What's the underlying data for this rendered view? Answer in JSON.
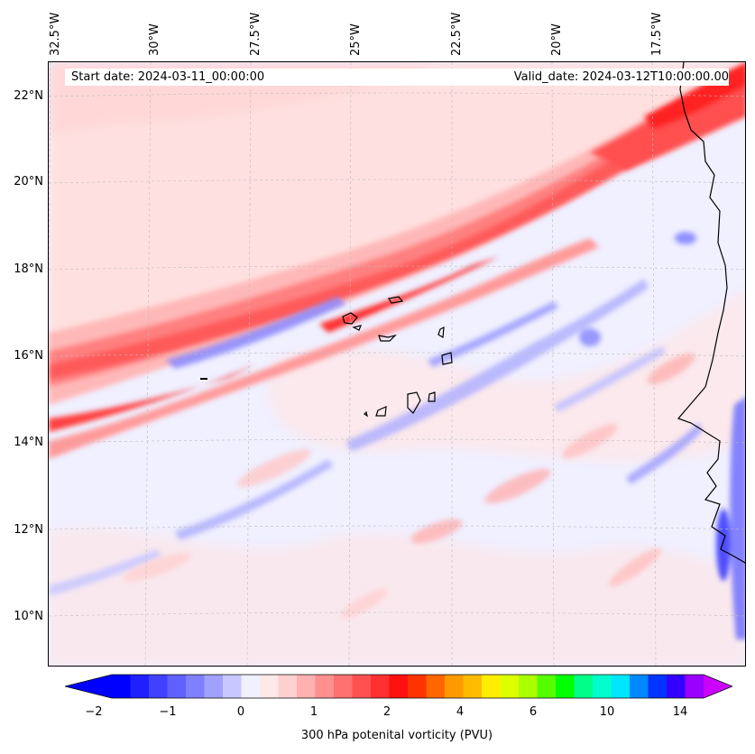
{
  "map": {
    "start_date": "Start date: 2024-03-11_00:00:00",
    "valid_date": "Valid_date: 2024-03-12T10:00:00.00",
    "lon_labels": [
      "32.5°W",
      "30°W",
      "27.5°W",
      "25°W",
      "22.5°W",
      "20°W",
      "17.5°W"
    ],
    "lat_labels": [
      "22°N",
      "20°N",
      "18°N",
      "16°N",
      "14°N",
      "12°N",
      "10°N"
    ],
    "gridlines": true,
    "coastline_color": "#000000"
  },
  "colorbar": {
    "label": "300 hPa potenital vorticity (PVU)",
    "ticks": [
      "−2",
      "−1",
      "0",
      "1",
      "2",
      "4",
      "6",
      "10",
      "14"
    ],
    "extend": "both",
    "colors": [
      "#0000ff",
      "#2020ff",
      "#4040ff",
      "#6060ff",
      "#8080ff",
      "#a0a0ff",
      "#c8c8ff",
      "#f0f0ff",
      "#ffe8e8",
      "#ffd0d0",
      "#ffb0b0",
      "#ff9090",
      "#ff7070",
      "#ff5050",
      "#ff3030",
      "#ff1010",
      "#ff3300",
      "#ff6600",
      "#ff9900",
      "#ffbb00",
      "#ffee00",
      "#ddff00",
      "#aaff00",
      "#55ff00",
      "#00ff00",
      "#00ff88",
      "#00ffcc",
      "#00e6ff",
      "#0088ff",
      "#0033ff",
      "#3300ff",
      "#9900ff"
    ],
    "under_color": "#0000ff",
    "over_color": "#cc00ff"
  }
}
